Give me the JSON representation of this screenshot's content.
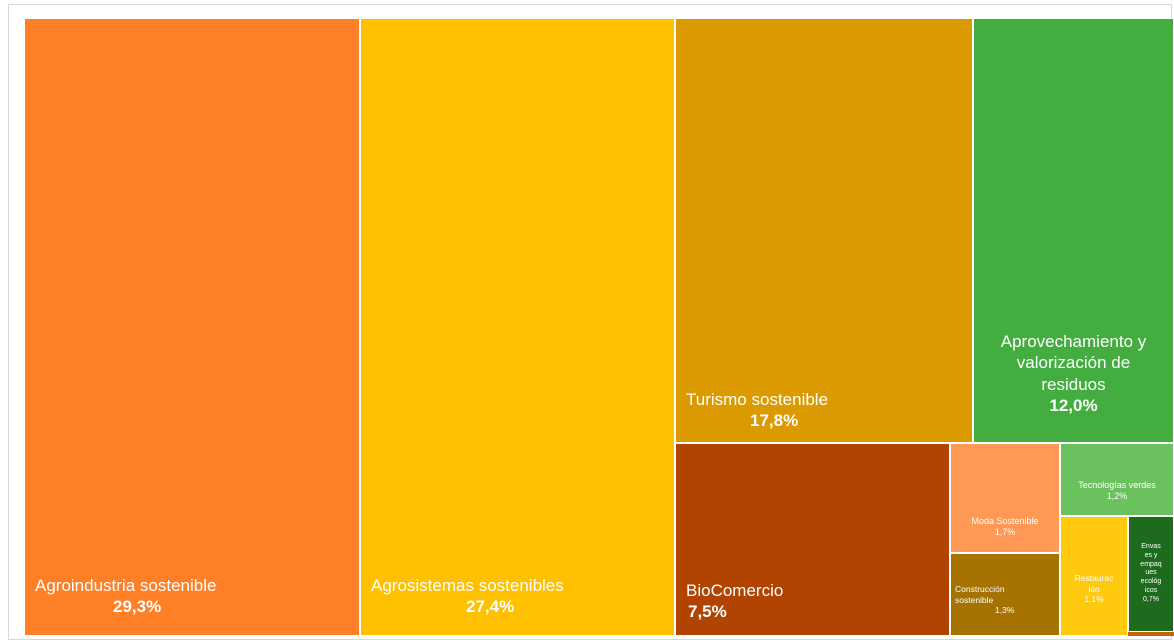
{
  "colors": {
    "agroindustria": "#FF7F27",
    "agrosistemas": "#FFC000",
    "turismo": "#DA9A00",
    "aprovechamiento": "#43AE3F",
    "biocomercio": "#B14400",
    "moda": "#FF9955",
    "construccion": "#A67200",
    "tecnologias": "#6CC15F",
    "restauracion": "#FFC90E",
    "envases": "#1E6B1E",
    "other": "#C9620D"
  },
  "chart_data": {
    "type": "treemap",
    "items": [
      {
        "name": "Agroindustria sostenible",
        "value": 29.3,
        "label_value": "29,3%",
        "color_key": "agroindustria"
      },
      {
        "name": "Agrosistemas sostenibles",
        "value": 27.4,
        "label_value": "27,4%",
        "color_key": "agrosistemas"
      },
      {
        "name": "Turismo sostenible",
        "value": 17.8,
        "label_value": "17,8%",
        "color_key": "turismo"
      },
      {
        "name": "Aprovechamiento y\nvalorización de\nresiduos",
        "value": 12.0,
        "label_value": "12,0%",
        "color_key": "aprovechamiento"
      },
      {
        "name": "BioComercio",
        "value": 7.5,
        "label_value": "7,5%",
        "color_key": "biocomercio"
      },
      {
        "name": "Moda Sostenible",
        "value": 1.7,
        "label_value": "1,7%",
        "color_key": "moda"
      },
      {
        "name": "Construcción\nsostenible",
        "value": 1.3,
        "label_value": "1,3%",
        "color_key": "construccion"
      },
      {
        "name": "Tecnologías verdes",
        "value": 1.2,
        "label_value": "1,2%",
        "color_key": "tecnologias"
      },
      {
        "name": "Restaurac\nión",
        "value": 1.1,
        "label_value": "1,1%",
        "color_key": "restauracion"
      },
      {
        "name": "Envas\nes y\nempaq\nues\necológ\nicos",
        "value": 0.7,
        "label_value": "0,7%",
        "color_key": "envases"
      }
    ]
  }
}
